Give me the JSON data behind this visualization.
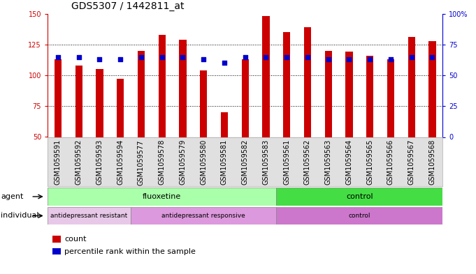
{
  "title": "GDS5307 / 1442811_at",
  "samples": [
    "GSM1059591",
    "GSM1059592",
    "GSM1059593",
    "GSM1059594",
    "GSM1059577",
    "GSM1059578",
    "GSM1059579",
    "GSM1059580",
    "GSM1059581",
    "GSM1059582",
    "GSM1059583",
    "GSM1059561",
    "GSM1059562",
    "GSM1059563",
    "GSM1059564",
    "GSM1059565",
    "GSM1059566",
    "GSM1059567",
    "GSM1059568"
  ],
  "counts": [
    113,
    108,
    105,
    97,
    120,
    133,
    129,
    104,
    70,
    113,
    148,
    135,
    139,
    120,
    119,
    116,
    113,
    131,
    128
  ],
  "percentile_ranks": [
    65,
    65,
    63,
    63,
    65,
    65,
    65,
    63,
    60,
    65,
    65,
    65,
    65,
    63,
    63,
    63,
    63,
    65,
    65
  ],
  "ylim_left": [
    50,
    150
  ],
  "ylim_right": [
    0,
    100
  ],
  "yticks_left": [
    50,
    75,
    100,
    125,
    150
  ],
  "yticks_right": [
    0,
    25,
    50,
    75,
    100
  ],
  "bar_color": "#cc0000",
  "dot_color": "#0000cc",
  "agent_groups": [
    {
      "label": "fluoxetine",
      "start": 0,
      "end": 11,
      "color": "#aaffaa"
    },
    {
      "label": "control",
      "start": 11,
      "end": 19,
      "color": "#44dd44"
    }
  ],
  "individual_groups": [
    {
      "label": "antidepressant resistant",
      "start": 0,
      "end": 4,
      "color": "#e8c8e8"
    },
    {
      "label": "antidepressant responsive",
      "start": 4,
      "end": 11,
      "color": "#dd99dd"
    },
    {
      "label": "control",
      "start": 11,
      "end": 19,
      "color": "#cc77cc"
    }
  ],
  "legend_items": [
    {
      "label": "count",
      "color": "#cc0000"
    },
    {
      "label": "percentile rank within the sample",
      "color": "#0000cc"
    }
  ],
  "grid_lines": [
    75,
    100,
    125
  ],
  "bar_width": 0.35,
  "dot_size": 18,
  "dot_marker": "s",
  "title_fontsize": 10,
  "tick_fontsize": 7,
  "label_fontsize": 8,
  "group_fontsize": 8,
  "legend_fontsize": 8
}
